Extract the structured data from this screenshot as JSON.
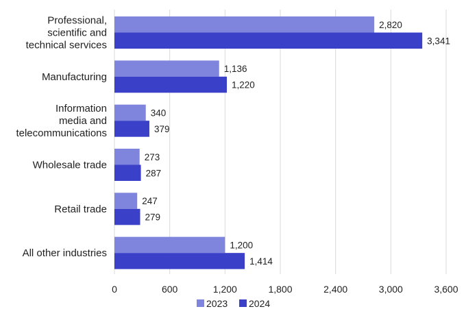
{
  "chart_data": {
    "type": "bar",
    "orientation": "horizontal",
    "categories": [
      [
        "Professional,",
        "scientific and",
        "technical services"
      ],
      [
        "Manufacturing"
      ],
      [
        "Information",
        "media and",
        "telecommunications"
      ],
      [
        "Wholesale trade"
      ],
      [
        "Retail trade"
      ],
      [
        "All other industries"
      ]
    ],
    "series": [
      {
        "name": "2023",
        "color": "#7f84dc",
        "values": [
          2820,
          1136,
          340,
          273,
          247,
          1200
        ],
        "labels": [
          "2,820",
          "1,136",
          "340",
          "273",
          "247",
          "1,200"
        ]
      },
      {
        "name": "2024",
        "color": "#3a40c8",
        "values": [
          3341,
          1220,
          379,
          287,
          279,
          1414
        ],
        "labels": [
          "3,341",
          "1,220",
          "379",
          "287",
          "279",
          "1,414"
        ]
      }
    ],
    "xticks": [
      0,
      600,
      1200,
      1800,
      2400,
      3000,
      3600
    ],
    "xtick_labels": [
      "0",
      "600",
      "1,200",
      "1,800",
      "2,400",
      "3,000",
      "3,600"
    ],
    "xlim": [
      0,
      3600
    ],
    "grid": "vertical",
    "legend_position": "bottom-center"
  }
}
